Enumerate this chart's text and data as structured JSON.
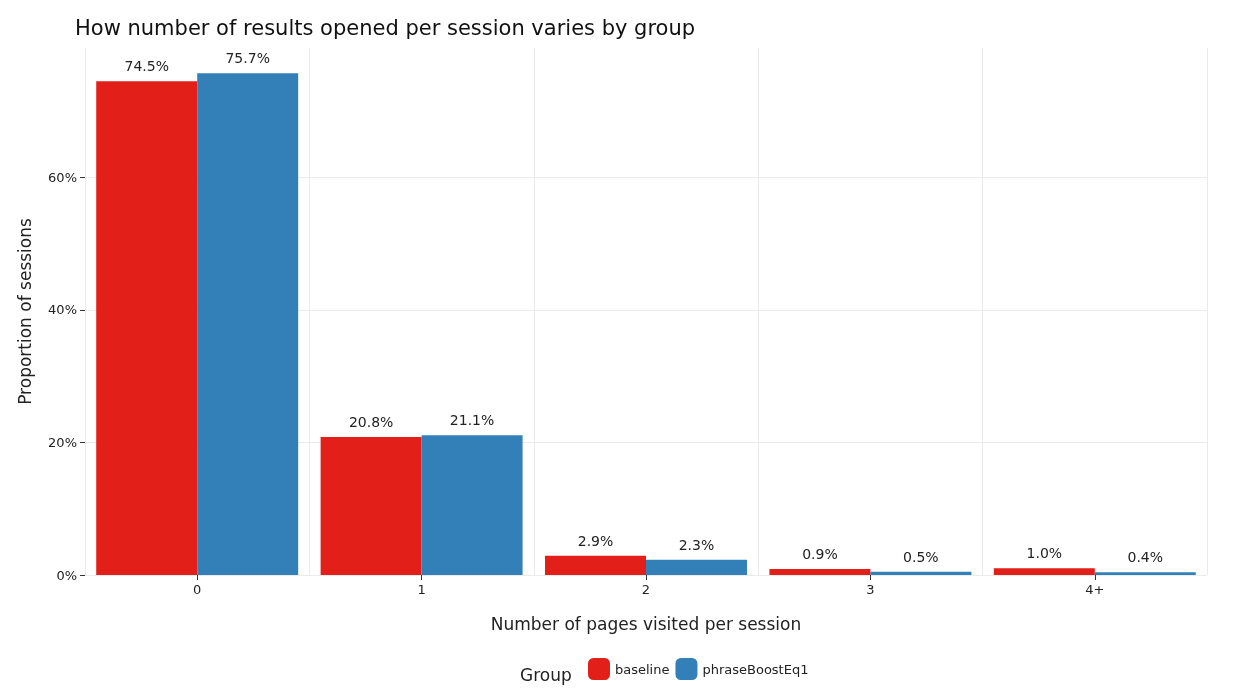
{
  "chart_data": {
    "type": "bar",
    "title": "How number of results opened per session varies by group",
    "xlabel": "Number of pages visited per session",
    "ylabel": "Proportion of sessions",
    "legend_title": "Group",
    "categories": [
      "0",
      "1",
      "2",
      "3",
      "4+"
    ],
    "series": [
      {
        "name": "baseline",
        "color": "#e31f1a",
        "values": [
          74.5,
          20.8,
          2.9,
          0.9,
          1.0
        ],
        "value_labels": [
          "74.5%",
          "20.8%",
          "2.9%",
          "0.9%",
          "1.0%"
        ]
      },
      {
        "name": "phraseBoostEq1",
        "color": "#337fb8",
        "values": [
          75.7,
          21.1,
          2.3,
          0.5,
          0.4
        ],
        "value_labels": [
          "75.7%",
          "21.1%",
          "2.3%",
          "0.5%",
          "0.4%"
        ]
      }
    ],
    "ylim": [
      0,
      79.5
    ],
    "yticks": [
      {
        "value": 0,
        "label": "0%"
      },
      {
        "value": 20,
        "label": "20%"
      },
      {
        "value": 40,
        "label": "40%"
      },
      {
        "value": 60,
        "label": "60%"
      }
    ],
    "grid": true,
    "legend": "bottom"
  }
}
